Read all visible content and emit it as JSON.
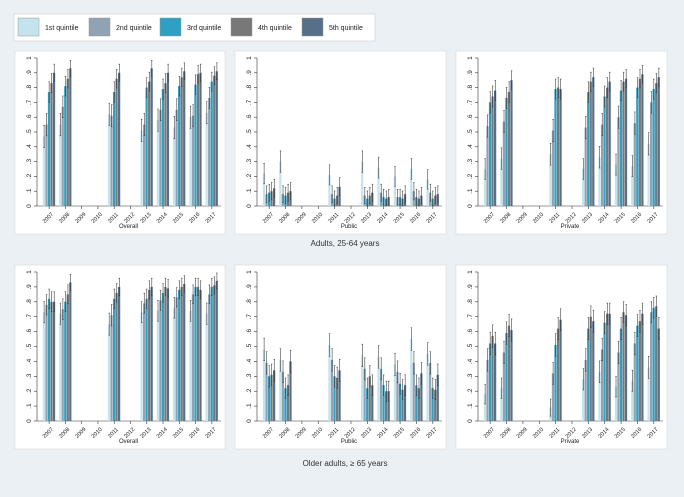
{
  "legend": {
    "entries": [
      "1st quintile",
      "2nd quintile",
      "3rd quintile",
      "4th quintile",
      "5th quintile"
    ],
    "colors": [
      "#c5e3ec",
      "#8fa3b3",
      "#2f9fc4",
      "#787878",
      "#56708a"
    ]
  },
  "row_titles": [
    "Adults, 25-64 years",
    "Older adults, ≥ 65 years"
  ],
  "chart_data": {
    "type": "bar",
    "grouped_panels": true,
    "years": [
      "2007",
      "2008",
      "2009",
      "2010",
      "2011",
      "2012",
      "2013",
      "2014",
      "2015",
      "2016",
      "2017"
    ],
    "series_names": [
      "1st quintile",
      "2nd quintile",
      "3rd quintile",
      "4th quintile",
      "5th quintile"
    ],
    "ylim": [
      0,
      1
    ],
    "yticks": [
      "0",
      ".1",
      ".2",
      ".3",
      ".4",
      ".5",
      ".6",
      ".7",
      ".8",
      ".9",
      "1"
    ],
    "grid": false,
    "error_bars": "95% intervals shown as vertical lines with caps",
    "panels": [
      {
        "row": 0,
        "xlabel": "Overall",
        "values": [
          [
            0.47,
            0.55,
            0.77,
            0.83,
            0.9
          ],
          [
            0.55,
            0.67,
            0.81,
            0.86,
            0.93
          ],
          null,
          null,
          [
            0.62,
            0.61,
            0.77,
            0.86,
            0.9
          ],
          null,
          [
            0.51,
            0.55,
            0.8,
            0.84,
            0.93
          ],
          [
            0.58,
            0.65,
            0.79,
            0.83,
            0.9
          ],
          [
            0.53,
            0.65,
            0.81,
            0.87,
            0.91
          ],
          [
            0.6,
            0.61,
            0.82,
            0.89,
            0.9
          ],
          [
            0.63,
            0.73,
            0.84,
            0.88,
            0.91
          ]
        ]
      },
      {
        "row": 0,
        "xlabel": "Public",
        "values": [
          [
            0.22,
            0.08,
            0.09,
            0.1,
            0.12
          ],
          [
            0.3,
            0.08,
            0.07,
            0.09,
            0.1
          ],
          null,
          null,
          [
            0.21,
            0.08,
            0.05,
            0.07,
            0.13
          ],
          null,
          [
            0.3,
            0.07,
            0.05,
            0.07,
            0.09
          ],
          [
            0.26,
            0.09,
            0.06,
            0.05,
            0.06
          ],
          [
            0.2,
            0.06,
            0.06,
            0.05,
            0.08
          ],
          [
            0.25,
            0.1,
            0.06,
            0.05,
            0.07
          ],
          [
            0.18,
            0.09,
            0.05,
            0.07,
            0.08
          ]
        ]
      },
      {
        "row": 0,
        "xlabel": "Private",
        "values": [
          [
            0.25,
            0.54,
            0.7,
            0.74,
            0.78
          ],
          [
            0.32,
            0.57,
            0.73,
            0.77,
            0.85
          ],
          null,
          null,
          [
            0.35,
            0.51,
            0.79,
            0.8,
            0.79
          ],
          null,
          [
            0.25,
            0.53,
            0.77,
            0.84,
            0.87
          ],
          [
            0.33,
            0.55,
            0.74,
            0.8,
            0.84
          ],
          [
            0.28,
            0.6,
            0.78,
            0.84,
            0.86
          ],
          [
            0.27,
            0.56,
            0.8,
            0.86,
            0.89
          ],
          [
            0.42,
            0.7,
            0.79,
            0.83,
            0.87
          ]
        ]
      },
      {
        "row": 1,
        "xlabel": "Overall",
        "values": [
          [
            0.73,
            0.78,
            0.82,
            0.8,
            0.8
          ],
          [
            0.72,
            0.75,
            0.8,
            0.85,
            0.93
          ],
          null,
          null,
          [
            0.65,
            0.71,
            0.82,
            0.86,
            0.9
          ],
          null,
          [
            0.73,
            0.79,
            0.82,
            0.88,
            0.9
          ],
          [
            0.74,
            0.81,
            0.86,
            0.9,
            0.89
          ],
          [
            0.76,
            0.83,
            0.88,
            0.9,
            0.92
          ],
          [
            0.74,
            0.85,
            0.9,
            0.9,
            0.88
          ],
          [
            0.72,
            0.85,
            0.9,
            0.91,
            0.94
          ]
        ]
      },
      {
        "row": 1,
        "xlabel": "Public",
        "values": [
          [
            0.48,
            0.39,
            0.3,
            0.31,
            0.34
          ],
          [
            0.41,
            0.33,
            0.22,
            0.24,
            0.4
          ],
          null,
          null,
          [
            0.51,
            0.41,
            0.3,
            0.29,
            0.34
          ],
          null,
          [
            0.44,
            0.35,
            0.22,
            0.3,
            0.24
          ],
          [
            0.43,
            0.35,
            0.24,
            0.2,
            0.2
          ],
          [
            0.38,
            0.33,
            0.25,
            0.21,
            0.24
          ],
          [
            0.55,
            0.39,
            0.24,
            0.22,
            0.32
          ],
          [
            0.45,
            0.39,
            0.22,
            0.21,
            0.31
          ]
        ]
      },
      {
        "row": 1,
        "xlabel": "Private",
        "values": [
          [
            0.18,
            0.41,
            0.52,
            0.57,
            0.52
          ],
          [
            0.22,
            0.46,
            0.59,
            0.64,
            0.61
          ],
          null,
          null,
          [
            0.09,
            0.32,
            0.51,
            0.62,
            0.68
          ],
          null,
          [
            0.28,
            0.41,
            0.62,
            0.7,
            0.67
          ],
          [
            0.33,
            0.48,
            0.66,
            0.72,
            0.72
          ],
          [
            0.23,
            0.46,
            0.62,
            0.73,
            0.71
          ],
          [
            0.27,
            0.52,
            0.64,
            0.67,
            0.72
          ],
          [
            0.36,
            0.73,
            0.76,
            0.77,
            0.62
          ]
        ]
      }
    ]
  }
}
